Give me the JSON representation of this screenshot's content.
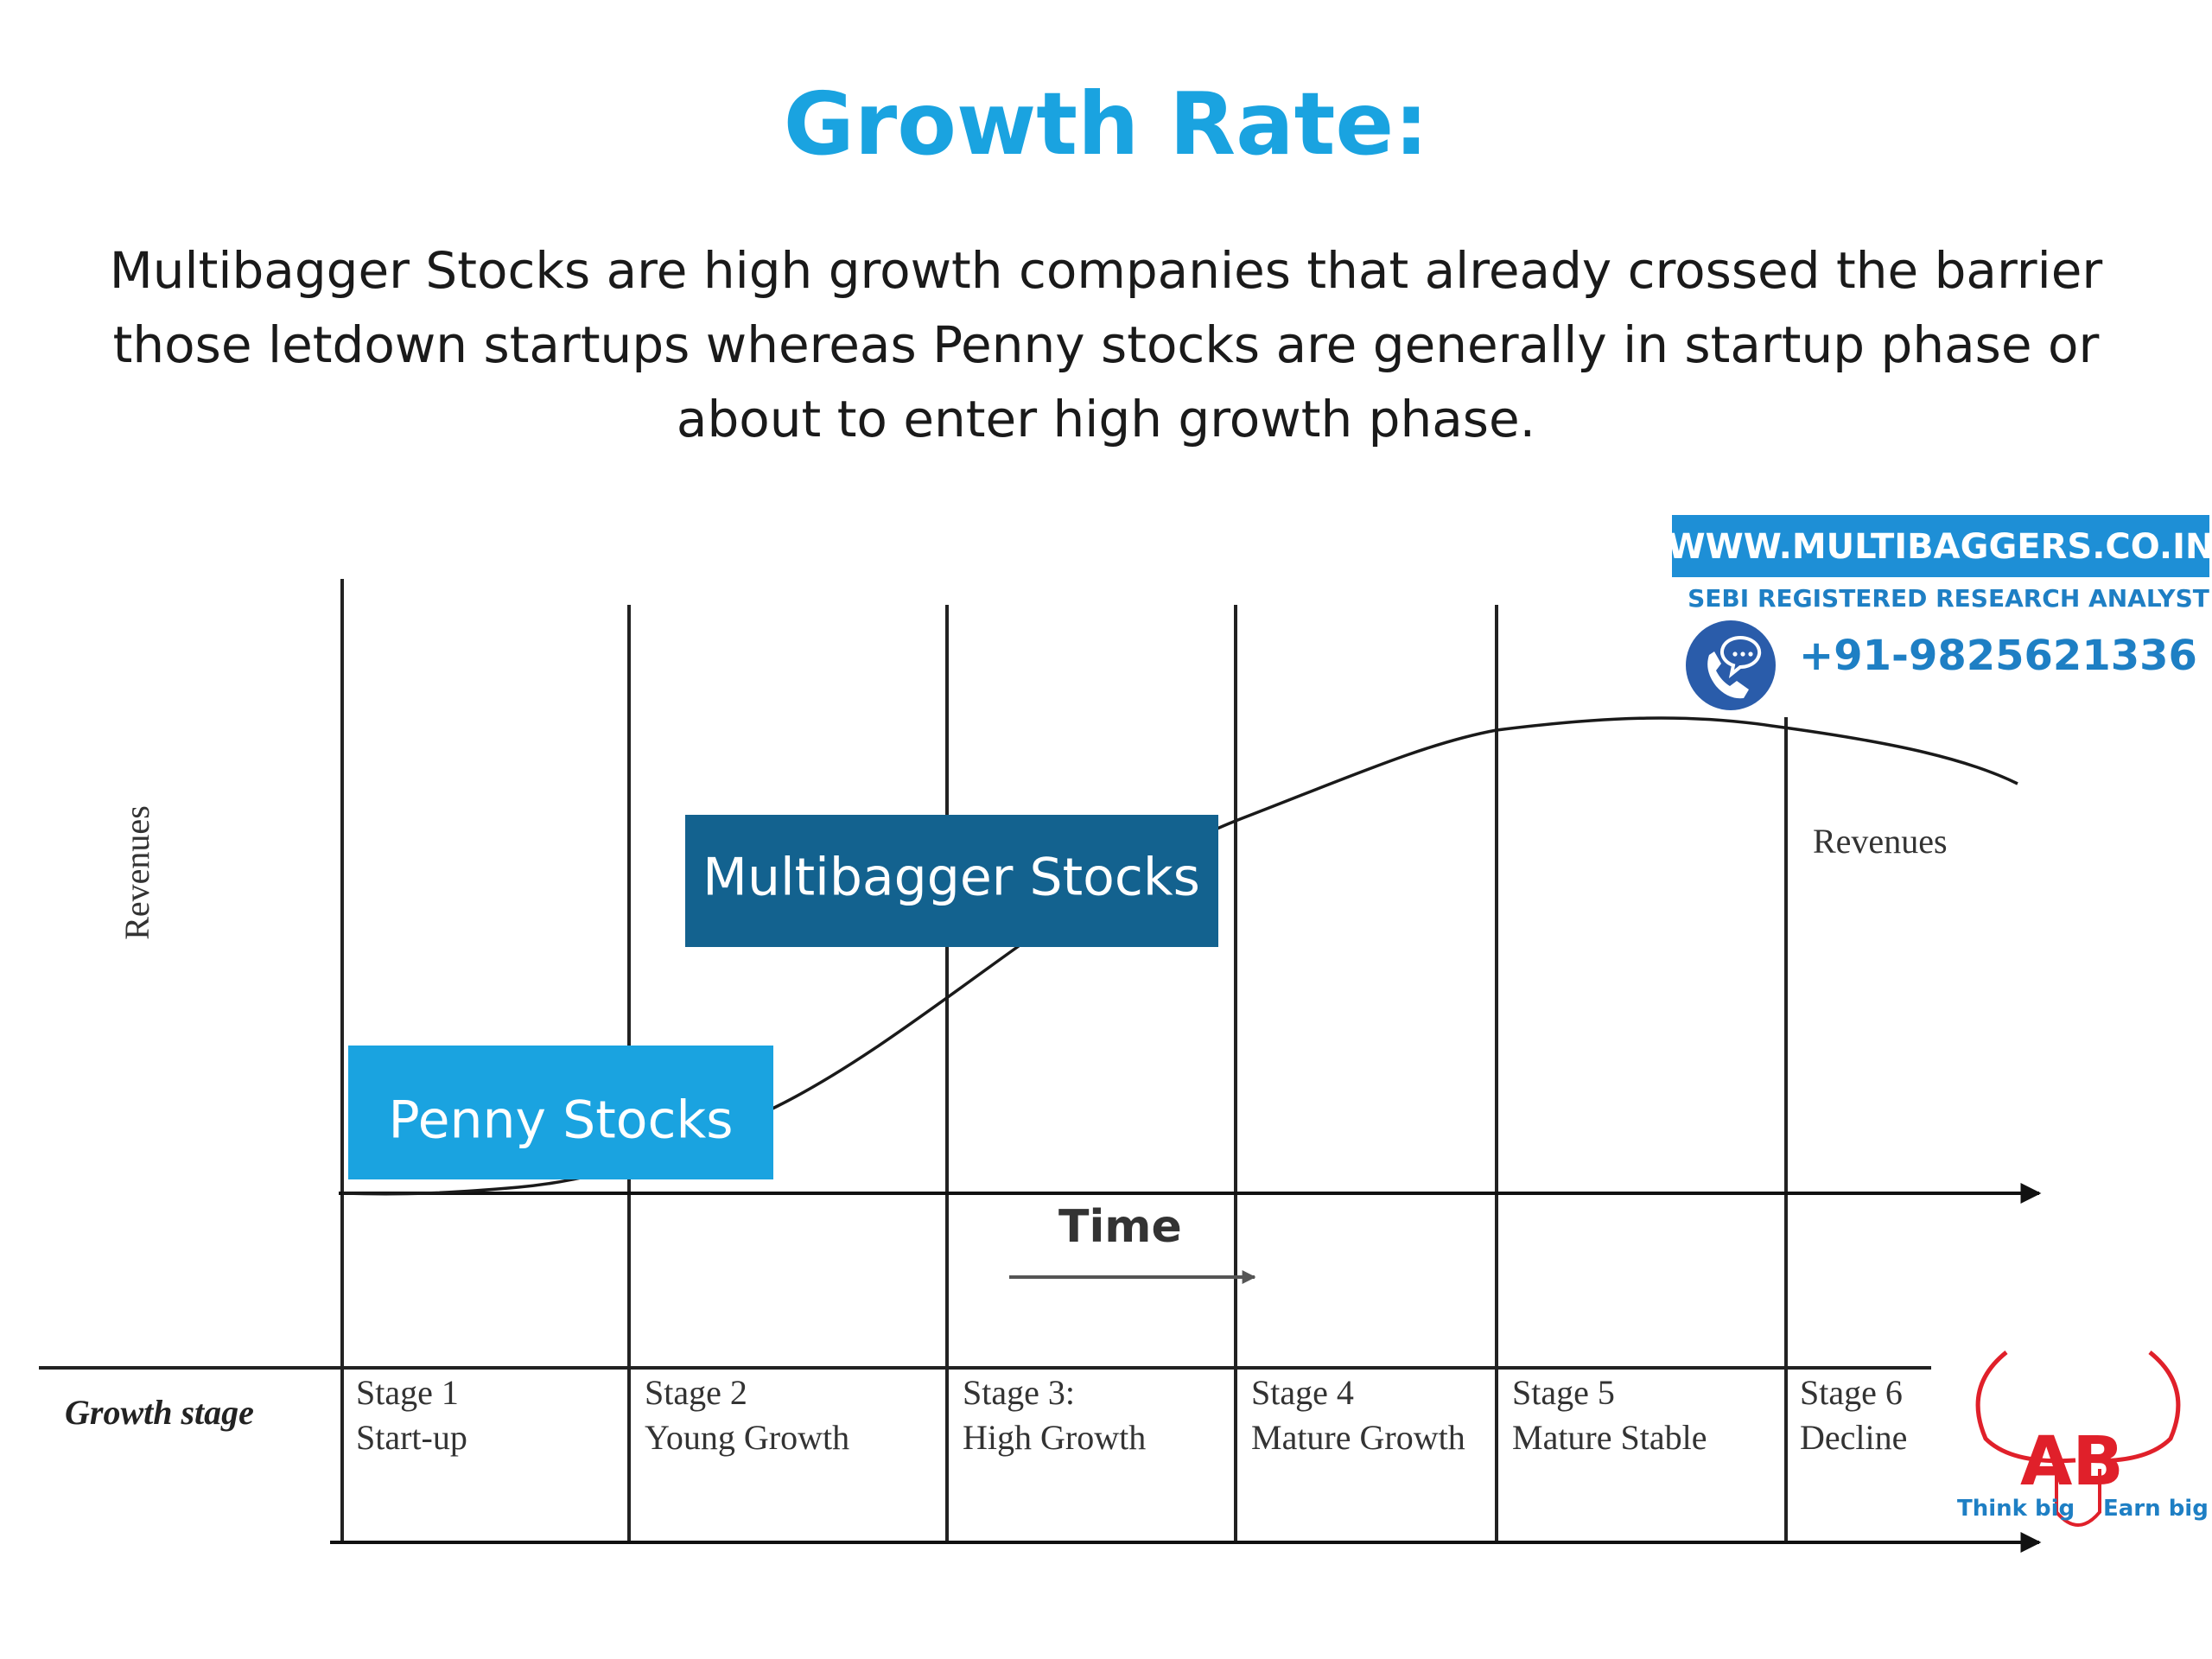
{
  "title": "Growth Rate:",
  "description": "Multibagger Stocks are high growth companies that already crossed the barrier those letdown startups whereas Penny stocks are generally in startup phase or about to enter high growth phase.",
  "diagram": {
    "y_axis_label": "Revenues",
    "curve_label": "Revenues",
    "time_label": "Time",
    "row_label": "Growth stage",
    "callouts": {
      "penny": "Penny Stocks",
      "multibagger": "Multibagger Stocks"
    },
    "stages": [
      {
        "name": "Stage 1",
        "desc": "Start-up"
      },
      {
        "name": "Stage 2",
        "desc": "Young Growth"
      },
      {
        "name": "Stage 3:",
        "desc": "High Growth"
      },
      {
        "name": "Stage 4",
        "desc": "Mature Growth"
      },
      {
        "name": "Stage 5",
        "desc": "Mature Stable"
      },
      {
        "name": "Stage 6",
        "desc": "Decline"
      }
    ]
  },
  "watermark": {
    "website": "WWW.MULTIBAGGERS.CO.IN",
    "tagline": "SEBI REGISTERED RESEARCH ANALYST",
    "phone": "+91-9825621336",
    "icon": "phone-chat-icon"
  },
  "logo": {
    "text": "AB",
    "left_caption": "Think big",
    "right_caption": "Earn big",
    "icon": "bull-horns-logo"
  },
  "colors": {
    "title": "#1aa3e0",
    "penny_box": "#1aa3e0",
    "multibagger_box": "#13628f",
    "watermark_band": "#1e8fd6",
    "logo_red": "#e0202a"
  }
}
